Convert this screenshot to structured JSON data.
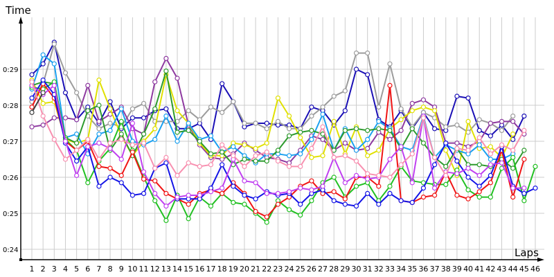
{
  "chart_data": {
    "type": "line",
    "title": "",
    "xlabel": "Laps",
    "ylabel": "Time",
    "y_ticks": [
      "0:24",
      "0:25",
      "0:26",
      "0:27",
      "0:28",
      "0:29"
    ],
    "y_tick_values": [
      24,
      25,
      26,
      27,
      28,
      29
    ],
    "ylim": [
      23.7,
      30.5
    ],
    "x": [
      1,
      2,
      3,
      4,
      5,
      6,
      7,
      8,
      9,
      10,
      11,
      12,
      13,
      14,
      15,
      16,
      17,
      18,
      19,
      20,
      21,
      22,
      23,
      24,
      25,
      26,
      27,
      28,
      29,
      30,
      31,
      32,
      33,
      34,
      35,
      36,
      37,
      38,
      39,
      40,
      41,
      42,
      43,
      44,
      45,
      46
    ],
    "grid": true,
    "legend": null,
    "marker": "hollow-circle",
    "series": [
      {
        "name": "Navy",
        "color": "#1a0fb5",
        "values": [
          28.85,
          29.15,
          29.75,
          28.35,
          27.6,
          27.95,
          27.5,
          28.1,
          27.35,
          27.65,
          27.65,
          27.85,
          27.9,
          27.35,
          27.35,
          27.5,
          27.05,
          28.6,
          28.1,
          27.4,
          27.5,
          27.5,
          27.45,
          27.45,
          27.35,
          27.95,
          27.85,
          27.45,
          27.85,
          29.0,
          28.85,
          27.6,
          27.4,
          27.85,
          27.35,
          27.8,
          27.35,
          27.3,
          28.25,
          28.2,
          27.3,
          27.15,
          27.45,
          27.05,
          27.7
        ]
      },
      {
        "name": "Gray",
        "color": "#9c9c9c",
        "values": [
          28.1,
          28.6,
          29.7,
          28.9,
          28.35,
          27.7,
          27.35,
          27.5,
          27.4,
          27.9,
          28.05,
          27.55,
          27.55,
          27.55,
          27.85,
          27.6,
          27.95,
          27.8,
          28.1,
          27.5,
          27.5,
          27.35,
          27.55,
          27.35,
          27.35,
          27.7,
          27.95,
          28.25,
          28.4,
          29.45,
          29.45,
          27.95,
          29.15,
          27.9,
          27.4,
          27.8,
          27.65,
          27.4,
          27.45,
          27.25,
          27.6,
          27.5,
          27.3,
          27.7
        ]
      },
      {
        "name": "Purple",
        "color": "#8e3aa0",
        "values": [
          27.4,
          27.45,
          27.65,
          27.65,
          27.6,
          28.55,
          27.55,
          27.75,
          27.95,
          27.35,
          27.2,
          28.65,
          29.3,
          28.75,
          27.45,
          26.9,
          26.55,
          26.5,
          26.65,
          26.95,
          26.75,
          26.55,
          26.5,
          26.4,
          26.75,
          27.15,
          27.05,
          26.75,
          26.95,
          26.75,
          26.8,
          27.25,
          27.05,
          27.3,
          28.05,
          28.15,
          27.95,
          26.95,
          26.95,
          26.85,
          27.0,
          27.5,
          27.55,
          27.55,
          27.2
        ]
      },
      {
        "name": "Yellow",
        "color": "#e0e000",
        "values": [
          28.7,
          28.05,
          28.1,
          27.05,
          26.95,
          27.05,
          28.7,
          27.9,
          27.15,
          26.6,
          27.0,
          27.35,
          28.85,
          27.85,
          27.5,
          26.95,
          26.6,
          26.6,
          26.95,
          26.9,
          26.8,
          26.95,
          28.2,
          27.7,
          27.1,
          26.55,
          26.6,
          27.55,
          26.65,
          27.4,
          26.6,
          26.75,
          27.35,
          27.6,
          27.85,
          27.95,
          27.85,
          26.75,
          26.05,
          27.55,
          26.8,
          26.85,
          26.55,
          27.2
        ]
      },
      {
        "name": "Sky Blue",
        "color": "#1aa0f0",
        "values": [
          28.45,
          29.4,
          29.15,
          27.1,
          27.2,
          26.65,
          27.2,
          27.3,
          27.9,
          27.0,
          26.9,
          27.05,
          27.7,
          27.0,
          27.5,
          27.05,
          27.15,
          26.7,
          26.85,
          26.6,
          26.4,
          26.65,
          26.65,
          26.6,
          26.65,
          27.05,
          27.75,
          26.75,
          27.35,
          26.75,
          27.05,
          27.55,
          27.35,
          26.85,
          26.75,
          27.7,
          26.55,
          26.9,
          26.75,
          26.65,
          26.9,
          26.5,
          26.5,
          26.65
        ]
      },
      {
        "name": "Green",
        "color": "#2d9a2d",
        "values": [
          28.55,
          28.65,
          28.6,
          27.1,
          26.95,
          27.85,
          28.0,
          26.75,
          27.2,
          26.6,
          27.2,
          27.9,
          28.95,
          27.25,
          27.3,
          27.0,
          26.65,
          26.7,
          26.35,
          26.5,
          26.45,
          26.45,
          26.75,
          27.15,
          27.25,
          27.3,
          27.2,
          26.75,
          27.3,
          27.35,
          27.3,
          27.35,
          27.3,
          26.8,
          27.35,
          26.95,
          26.55,
          26.3,
          26.8,
          26.35,
          26.35,
          26.3,
          26.5,
          26.25,
          26.75
        ]
      },
      {
        "name": "Bright Green",
        "color": "#22c022",
        "values": [
          28.5,
          28.45,
          28.65,
          27.05,
          26.75,
          25.85,
          26.45,
          26.8,
          27.55,
          26.75,
          26.0,
          25.35,
          24.8,
          25.5,
          24.85,
          25.45,
          25.2,
          25.55,
          25.3,
          25.25,
          25.0,
          24.75,
          25.35,
          25.1,
          24.95,
          25.35,
          25.85,
          26.0,
          25.45,
          25.75,
          25.85,
          25.35,
          25.75,
          26.3,
          25.9,
          25.85,
          25.8,
          25.8,
          26.2,
          25.65,
          25.45,
          25.45,
          26.25,
          26.55,
          25.35,
          26.3
        ]
      },
      {
        "name": "Red",
        "color": "#f01414",
        "values": [
          27.95,
          28.6,
          28.2,
          27.0,
          26.75,
          27.0,
          26.3,
          26.25,
          26.05,
          26.7,
          25.95,
          25.9,
          25.55,
          25.4,
          25.25,
          25.55,
          25.65,
          25.55,
          25.85,
          25.55,
          25.05,
          24.9,
          25.25,
          25.45,
          25.75,
          25.9,
          25.55,
          25.6,
          25.4,
          26.0,
          26.0,
          25.75,
          28.55,
          25.35,
          25.3,
          25.45,
          25.5,
          26.15,
          25.5,
          25.4,
          25.6,
          25.85,
          26.75,
          25.45,
          26.5
        ]
      },
      {
        "name": "Blue",
        "color": "#1414e6",
        "values": [
          28.2,
          28.7,
          28.3,
          26.95,
          26.45,
          26.85,
          25.75,
          26.0,
          25.85,
          25.5,
          25.55,
          26.25,
          26.4,
          25.4,
          25.4,
          25.4,
          25.7,
          26.35,
          25.75,
          25.5,
          25.4,
          25.6,
          25.5,
          25.55,
          25.25,
          25.55,
          25.65,
          25.35,
          25.25,
          25.2,
          25.55,
          25.25,
          25.55,
          25.35,
          25.3,
          25.7,
          26.35,
          26.95,
          26.45,
          26.0,
          25.75,
          26.05,
          26.85,
          25.75,
          25.55,
          25.7
        ]
      },
      {
        "name": "Violet",
        "color": "#c040f0",
        "values": [
          28.55,
          28.3,
          28.55,
          27.0,
          26.05,
          26.85,
          26.95,
          26.8,
          26.5,
          27.5,
          26.15,
          25.55,
          25.2,
          25.45,
          25.5,
          25.5,
          25.6,
          25.7,
          26.5,
          25.9,
          25.85,
          25.55,
          25.55,
          25.6,
          25.7,
          25.65,
          25.75,
          26.55,
          25.85,
          26.05,
          25.95,
          26.0,
          26.5,
          26.85,
          25.85,
          27.7,
          25.7,
          26.15,
          26.1,
          26.25,
          26.05,
          26.35,
          26.4,
          25.7,
          25.7
        ]
      },
      {
        "name": "Pink",
        "color": "#f890b0",
        "values": [
          28.65,
          27.7,
          27.05,
          26.5,
          26.75,
          27.05,
          26.5,
          26.95,
          27.05,
          26.9,
          26.95,
          26.25,
          26.55,
          26.05,
          26.4,
          26.3,
          26.35,
          26.9,
          26.6,
          26.3,
          26.6,
          26.7,
          26.45,
          26.3,
          26.3,
          26.8,
          27.4,
          26.55,
          26.6,
          26.45,
          26.1,
          26.05,
          26.0,
          26.35,
          26.65,
          27.65,
          26.55,
          26.05,
          26.8,
          26.75,
          27.1,
          26.65,
          26.9,
          26.75,
          27.3
        ]
      },
      {
        "name": "Dark Gray",
        "color": "#404040",
        "values": [
          27.8,
          28.35
        ]
      }
    ]
  },
  "axes": {
    "y_title": "Time",
    "x_title": "Laps"
  }
}
